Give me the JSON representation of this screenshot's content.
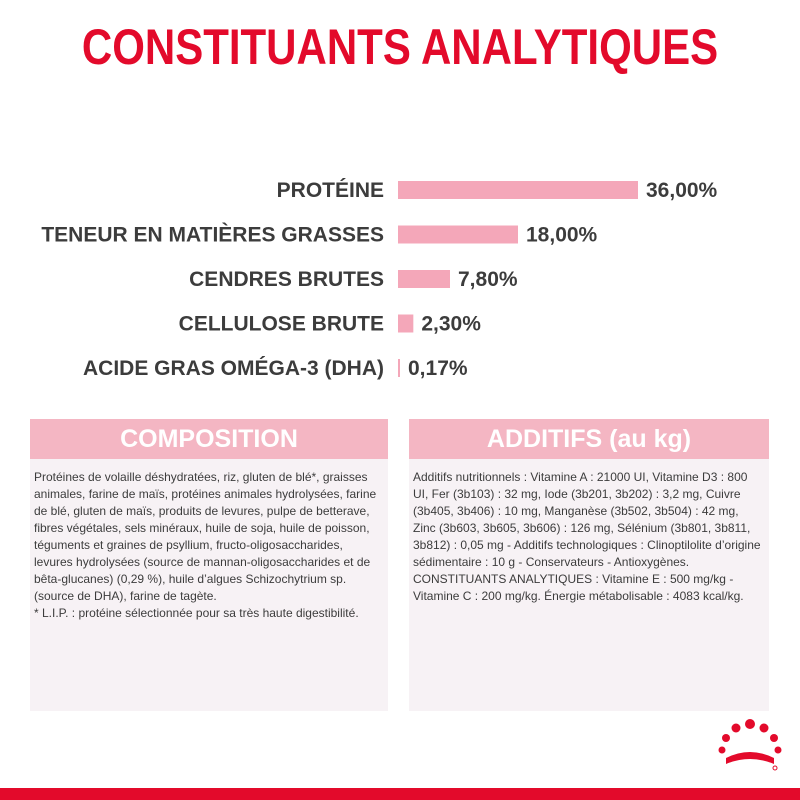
{
  "title": "CONSTITUANTS ANALYTIQUES",
  "chart_data": {
    "type": "bar",
    "orientation": "horizontal",
    "categories": [
      "PROTÉINE",
      "TENEUR EN MATIÈRES GRASSES",
      "CENDRES BRUTES",
      "CELLULOSE BRUTE",
      "ACIDE GRAS OMÉGA-3 (DHA)"
    ],
    "values": [
      36.0,
      18.0,
      7.8,
      2.3,
      0.17
    ],
    "value_labels": [
      "36,00%",
      "18,00%",
      "7,80%",
      "2,30%",
      "0,17%"
    ],
    "bar_color": "#f4a7b9"
  },
  "composition": {
    "header": "COMPOSITION",
    "text": "Protéines de volaille déshydratées, riz, gluten de blé*, graisses animales, farine de maïs, protéines animales hydrolysées, farine de blé, gluten de maïs, produits de levures, pulpe de betterave, fibres végétales, sels minéraux, huile de soja, huile de poisson, téguments et graines de psyllium, fructo-oligosaccharides, levures hydrolysées (source de mannan-oligosaccharides et de bêta-glucanes) (0,29 %), huile d’algues Schizochytrium sp. (source de DHA), farine de tagète.",
    "note": "* L.I.P. : protéine sélectionnée pour sa très haute digestibilité."
  },
  "additifs": {
    "header": "ADDITIFS (au kg)",
    "text": "Additifs nutritionnels : Vitamine A : 21000 UI, Vitamine D3 : 800 UI, Fer (3b103) : 32 mg, Iode (3b201, 3b202) : 3,2 mg, Cuivre (3b405, 3b406) : 10 mg, Manganèse (3b502, 3b504) : 42 mg, Zinc (3b603, 3b605, 3b606) : 126 mg, Sélénium (3b801, 3b811, 3b812) : 0,05 mg - Additifs technologiques : Clinoptilolite d’origine sédimentaire : 10 g - Conservateurs - Antioxygènes. CONSTITUANTS ANALYTIQUES : Vitamine E : 500 mg/kg - Vitamine C : 200 mg/kg. Énergie métabolisable : 4083 kcal/kg."
  },
  "colors": {
    "brand_red": "#e30a2b",
    "header_pink": "#f4b6c3",
    "panel_bg": "#f7f2f5",
    "text_dark": "#3c3c3c"
  },
  "icons": {
    "logo": "royal-canin-crown-icon"
  }
}
